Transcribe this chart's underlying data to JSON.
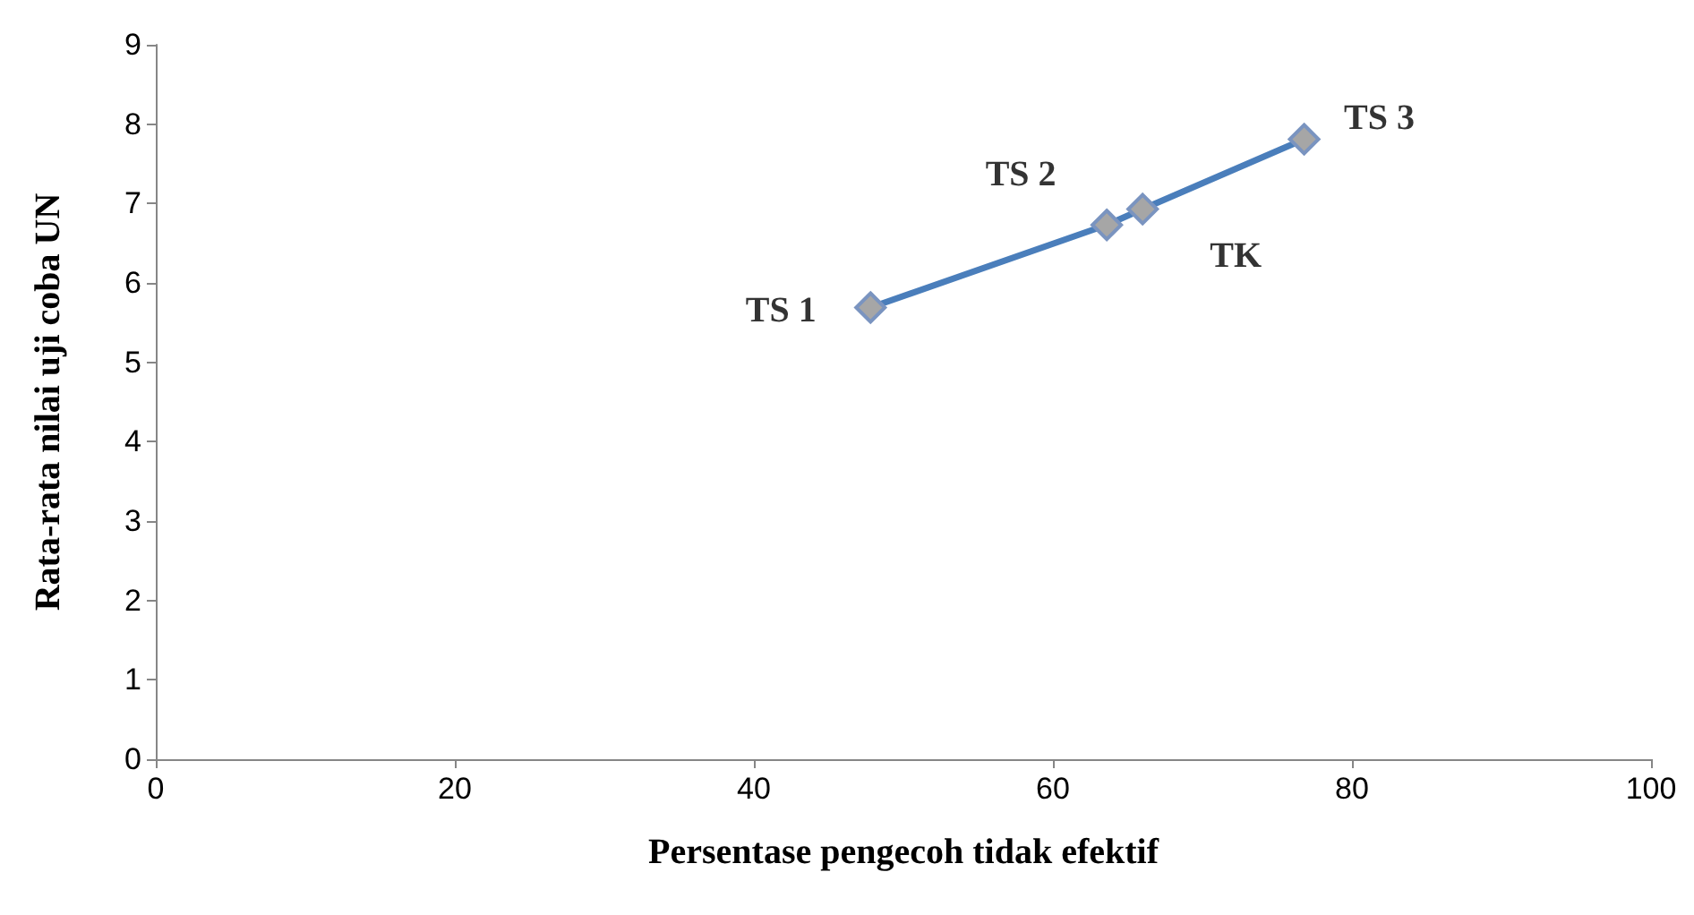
{
  "chart_data": {
    "type": "line",
    "xlabel": "Persentase pengecoh tidak efektif",
    "ylabel": "Rata-rata nilai uji coba UN",
    "x": [
      47.8,
      63.6,
      66.0,
      76.8
    ],
    "series": [
      {
        "color": "#4a7ebb",
        "values": [
          5.69,
          6.73,
          6.93,
          7.81
        ]
      }
    ],
    "xlim": [
      0,
      100
    ],
    "xticks": [
      0,
      20,
      40,
      60,
      80,
      100
    ],
    "ylim": [
      0,
      9
    ],
    "yticks": [
      0,
      1,
      2,
      3,
      4,
      5,
      6,
      7,
      8,
      9
    ],
    "grid": false,
    "marker": "diamond",
    "line_style": "solid",
    "annotations": [
      {
        "text": "TS 1",
        "x": 47.8,
        "y": 5.69
      },
      {
        "text": "TS 2",
        "x": 63.6,
        "y": 6.73
      },
      {
        "text": "TK",
        "x": 66.0,
        "y": 6.93
      },
      {
        "text": "TS 3",
        "x": 76.8,
        "y": 7.81
      }
    ]
  }
}
